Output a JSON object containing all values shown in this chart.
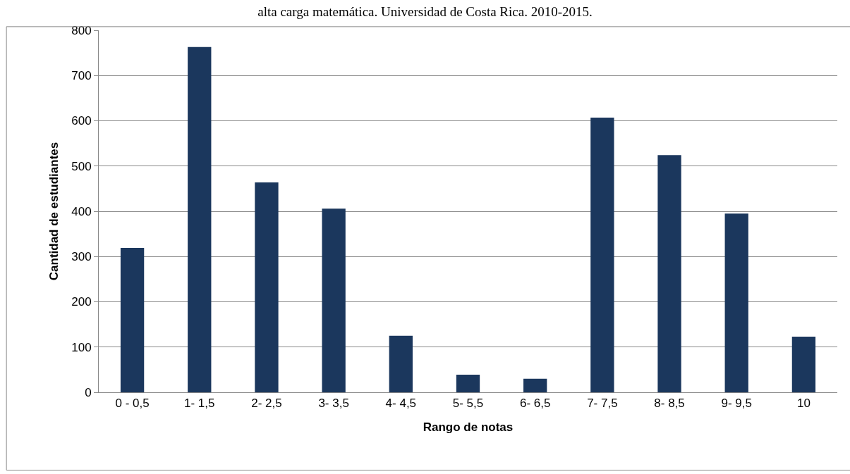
{
  "chart_data": {
    "type": "bar",
    "title": "alta carga matemática. Universidad de Costa Rica. 2010-2015.",
    "xlabel": "Rango de notas",
    "ylabel": "Cantidad de estudiantes",
    "categories": [
      "0 - 0,5",
      "1- 1,5",
      "2- 2,5",
      "3- 3,5",
      "4- 4,5",
      "5- 5,5",
      "6- 6,5",
      "7- 7,5",
      "8- 8,5",
      "9- 9,5",
      "10"
    ],
    "values": [
      319,
      763,
      464,
      406,
      125,
      39,
      30,
      607,
      524,
      395,
      123
    ],
    "color": "#1b375d",
    "ylim": [
      0,
      800
    ],
    "yticks": [
      0,
      100,
      200,
      300,
      400,
      500,
      600,
      700,
      800
    ],
    "grid": "y"
  }
}
